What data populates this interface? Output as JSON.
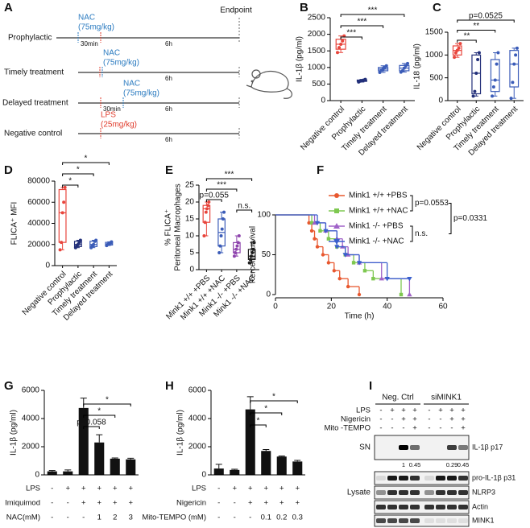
{
  "panels": [
    "A",
    "B",
    "C",
    "D",
    "E",
    "F",
    "G",
    "H",
    "I"
  ],
  "timeline": {
    "endpoint": "Endpoint",
    "rows": [
      {
        "label": "Prophylactic",
        "drug": [
          "NAC",
          "(75mg/kg)"
        ],
        "delay": "30min",
        "duration": "6h"
      },
      {
        "label": "Timely treatment",
        "drug": [
          "NAC",
          "(75mg/kg)"
        ],
        "duration": "6h"
      },
      {
        "label": "Delayed treatment",
        "drug": [
          "NAC",
          "(75mg/kg)"
        ],
        "delay": "30min",
        "duration": "6h"
      },
      {
        "label": "Negative control",
        "drug": [
          "LPS",
          "(25mg/kg)"
        ],
        "duration": "6h"
      }
    ]
  },
  "chart_data": [
    {
      "type": "box",
      "ylabel": "IL-1β (pg/ml)",
      "categories": [
        "Negative control",
        "Prophylactic",
        "Timely treatment",
        "Delayed treatment"
      ],
      "colors": [
        "#e8453c",
        "#23307a",
        "#3b5cb8",
        "#3b5cb8"
      ],
      "min": [
        1450,
        560,
        850,
        860
      ],
      "q1": [
        1550,
        580,
        900,
        900
      ],
      "median": [
        1700,
        600,
        950,
        980
      ],
      "q3": [
        1850,
        620,
        1000,
        1060
      ],
      "max": [
        1950,
        640,
        1050,
        1120
      ],
      "points": [
        [
          1450,
          1600,
          1700,
          1800,
          1950
        ],
        [
          560,
          590,
          600,
          620,
          640
        ],
        [
          850,
          920,
          950,
          1000,
          1050
        ],
        [
          860,
          900,
          980,
          1050,
          1120
        ]
      ],
      "ylim": [
        0,
        2500
      ],
      "yticks": [
        0,
        500,
        1000,
        1500,
        2000,
        2500
      ],
      "comparisons": [
        {
          "label": "***",
          "pair": [
            0,
            1
          ]
        },
        {
          "label": "***",
          "pair": [
            0,
            2
          ]
        },
        {
          "label": "***",
          "pair": [
            0,
            3
          ]
        }
      ]
    },
    {
      "type": "box",
      "ylabel": "IL-18 (pg/ml)",
      "categories": [
        "Negative control",
        "Prophylactic",
        "Timely treatment",
        "Delayed treatment"
      ],
      "colors": [
        "#e8453c",
        "#23307a",
        "#3b5cb8",
        "#3b5cb8"
      ],
      "min": [
        950,
        100,
        100,
        50
      ],
      "q1": [
        1000,
        150,
        200,
        300
      ],
      "median": [
        1100,
        600,
        450,
        800
      ],
      "q3": [
        1200,
        1000,
        900,
        1100
      ],
      "max": [
        1250,
        1050,
        1050,
        1150
      ],
      "points": [
        [
          950,
          1050,
          1100,
          1150,
          1250
        ],
        [
          100,
          200,
          600,
          900,
          1050
        ],
        [
          100,
          300,
          450,
          800,
          1050
        ],
        [
          50,
          400,
          800,
          1000,
          1150
        ]
      ],
      "ylim": [
        0,
        1500
      ],
      "yticks": [
        0,
        500,
        1000,
        1500
      ],
      "comparisons": [
        {
          "label": "**",
          "pair": [
            0,
            1
          ]
        },
        {
          "label": "**",
          "pair": [
            0,
            2
          ]
        },
        {
          "label": "p=0.0525",
          "pair": [
            0,
            3
          ]
        }
      ]
    },
    {
      "type": "box",
      "ylabel": "FLICA⁺ MFI",
      "categories": [
        "Negative control",
        "Prophylactic",
        "Timely treatment",
        "Delayed treatment"
      ],
      "colors": [
        "#e8453c",
        "#23307a",
        "#3b5cb8",
        "#3b5cb8"
      ],
      "min": [
        15000,
        17000,
        17000,
        19000
      ],
      "q1": [
        22000,
        18000,
        18000,
        19500
      ],
      "median": [
        50000,
        20000,
        20000,
        20500
      ],
      "q3": [
        72000,
        23000,
        23000,
        22000
      ],
      "max": [
        74000,
        24000,
        24000,
        22500
      ],
      "points": [
        [
          15000,
          22000,
          50000,
          60000,
          74000
        ],
        [
          17000,
          19000,
          20000,
          22000,
          24000
        ],
        [
          17000,
          19000,
          20000,
          23000,
          24000
        ],
        [
          19000,
          20000,
          20500,
          21500,
          22500
        ]
      ],
      "ylim": [
        0,
        80000
      ],
      "yticks": [
        0,
        20000,
        40000,
        60000,
        80000
      ],
      "comparisons": [
        {
          "label": "*",
          "pair": [
            0,
            1
          ]
        },
        {
          "label": "*",
          "pair": [
            0,
            2
          ]
        },
        {
          "label": "*",
          "pair": [
            0,
            3
          ]
        }
      ]
    },
    {
      "type": "box",
      "ylabel": [
        "% FLICA⁺",
        "Peritoneal Macrophages"
      ],
      "categories": [
        "Mink1 +/+ +PBS",
        "Mink1 +/+ +NAC",
        "Mink1 -/- +PBS",
        "Mink1 -/- +NAC"
      ],
      "colors": [
        "#e8453c",
        "#3b5cb8",
        "#8e44ad",
        "#222222"
      ],
      "min": [
        10,
        5,
        4,
        2
      ],
      "q1": [
        14,
        7,
        5,
        3
      ],
      "median": [
        18,
        11,
        6,
        4
      ],
      "q3": [
        19,
        15,
        8,
        6
      ],
      "max": [
        20,
        17,
        10,
        8
      ],
      "points": [
        [
          10,
          14,
          17,
          18,
          19,
          20
        ],
        [
          5,
          7,
          10,
          12,
          15,
          17
        ],
        [
          4,
          5,
          6,
          7,
          8,
          10
        ],
        [
          2,
          3,
          4,
          5,
          6,
          8
        ]
      ],
      "ylim": [
        0,
        25
      ],
      "yticks": [
        0,
        5,
        10,
        15,
        20,
        25
      ],
      "comparisons": [
        {
          "label": "n.s.",
          "pair": [
            2,
            3
          ]
        },
        {
          "label": "p=0.055",
          "pair": [
            0,
            1
          ]
        },
        {
          "label": "***",
          "pair": [
            0,
            2
          ]
        },
        {
          "label": "***",
          "pair": [
            0,
            3
          ]
        }
      ]
    },
    {
      "type": "line",
      "step": true,
      "ylabel": "Percent survival",
      "xlabel": "Time (h)",
      "xlim": [
        0,
        60
      ],
      "xticks": [
        0,
        20,
        40,
        60
      ],
      "ylim": [
        0,
        100
      ],
      "yticks": [
        0,
        50,
        100
      ],
      "series": [
        {
          "name": "Mink1 +/+ +PBS",
          "color": "#e8582f",
          "marker": "circle",
          "x": [
            0,
            12,
            13,
            14,
            15,
            17,
            19,
            21,
            23,
            26,
            30
          ],
          "values": [
            100,
            90,
            80,
            70,
            60,
            50,
            40,
            30,
            20,
            10,
            0
          ]
        },
        {
          "name": "Mink1 +/+ +NAC",
          "color": "#7ec850",
          "marker": "square",
          "x": [
            0,
            13,
            16,
            19,
            22,
            25,
            28,
            32,
            35,
            45
          ],
          "values": [
            100,
            90,
            80,
            70,
            60,
            50,
            40,
            30,
            20,
            0
          ]
        },
        {
          "name": "Mink1 -/- +PBS",
          "color": "#a062c8",
          "marker": "triangle-up",
          "x": [
            0,
            14,
            18,
            22,
            24,
            26,
            30,
            38,
            48
          ],
          "values": [
            100,
            90,
            80,
            70,
            60,
            50,
            40,
            20,
            0
          ]
        },
        {
          "name": "Mink1 -/- +NAC",
          "color": "#3a5fcd",
          "marker": "triangle-down",
          "x": [
            0,
            15,
            18,
            22,
            25,
            30,
            40,
            48
          ],
          "values": [
            100,
            90,
            80,
            60,
            50,
            40,
            20,
            20
          ]
        }
      ],
      "comparisons": [
        {
          "label": "p=0.0553",
          "pair": [
            0,
            1
          ]
        },
        {
          "label": "n.s.",
          "pair": [
            2,
            3
          ]
        },
        {
          "label": "p=0.0331",
          "pair": [
            0,
            2
          ]
        }
      ]
    },
    {
      "type": "bar",
      "ylabel": "IL-1β (pg/ml)",
      "color": "#111111",
      "values": [
        250,
        250,
        4750,
        2300,
        1150,
        1100
      ],
      "errors": [
        60,
        100,
        700,
        550,
        50,
        80
      ],
      "ylim": [
        0,
        6000
      ],
      "yticks": [
        0,
        2000,
        4000,
        6000
      ],
      "conditions": {
        "labels": [
          "LPS",
          "Imiquimod",
          "NAC(mM)"
        ],
        "rows": [
          [
            "-",
            "+",
            "+",
            "+",
            "+",
            "+"
          ],
          [
            "-",
            "-",
            "+",
            "+",
            "+",
            "+"
          ],
          [
            "-",
            "-",
            "-",
            1,
            2,
            3
          ]
        ]
      },
      "comparisons": [
        {
          "label": "p=0.058",
          "pair": [
            2,
            3
          ]
        },
        {
          "label": "*",
          "pair": [
            2,
            4
          ]
        },
        {
          "label": "*",
          "pair": [
            2,
            5
          ]
        }
      ]
    },
    {
      "type": "bar",
      "ylabel": "IL-1β (pg/ml)",
      "color": "#111111",
      "values": [
        450,
        350,
        4650,
        1700,
        1300,
        950
      ],
      "errors": [
        300,
        50,
        900,
        100,
        40,
        80
      ],
      "ylim": [
        0,
        6000
      ],
      "yticks": [
        0,
        2000,
        4000,
        6000
      ],
      "conditions": {
        "labels": [
          "LPS",
          "Nigericin",
          "Mito-TEMPO (mM)"
        ],
        "rows": [
          [
            "-",
            "+",
            "+",
            "+",
            "+",
            "+"
          ],
          [
            "-",
            "-",
            "+",
            "+",
            "+",
            "+"
          ],
          [
            "-",
            "-",
            "-",
            0.1,
            0.2,
            0.3
          ]
        ]
      },
      "comparisons": [
        {
          "label": "*",
          "pair": [
            2,
            3
          ]
        },
        {
          "label": "*",
          "pair": [
            2,
            4
          ]
        },
        {
          "label": "*",
          "pair": [
            2,
            5
          ]
        }
      ]
    }
  ],
  "blot": {
    "groups": [
      "Neg. Ctrl",
      "siMINK1"
    ],
    "treatments": {
      "labels": [
        "LPS",
        "Nigericin",
        "Mito -TEMPO"
      ],
      "rows": [
        [
          "-",
          "+",
          "+",
          "+",
          "-",
          "+",
          "+",
          "+"
        ],
        [
          "-",
          "-",
          "+",
          "+",
          "-",
          "-",
          "+",
          "+"
        ],
        [
          "-",
          "-",
          "-",
          "+",
          "-",
          "-",
          "-",
          "+"
        ]
      ]
    },
    "sections": [
      "SN",
      "Lysate"
    ],
    "bands": [
      "IL-1β p17",
      "pro-IL-1β p31",
      "NLRP3",
      "Actin",
      "MINK1"
    ],
    "quant": [
      1,
      0.45,
      0.29,
      0.45
    ]
  }
}
